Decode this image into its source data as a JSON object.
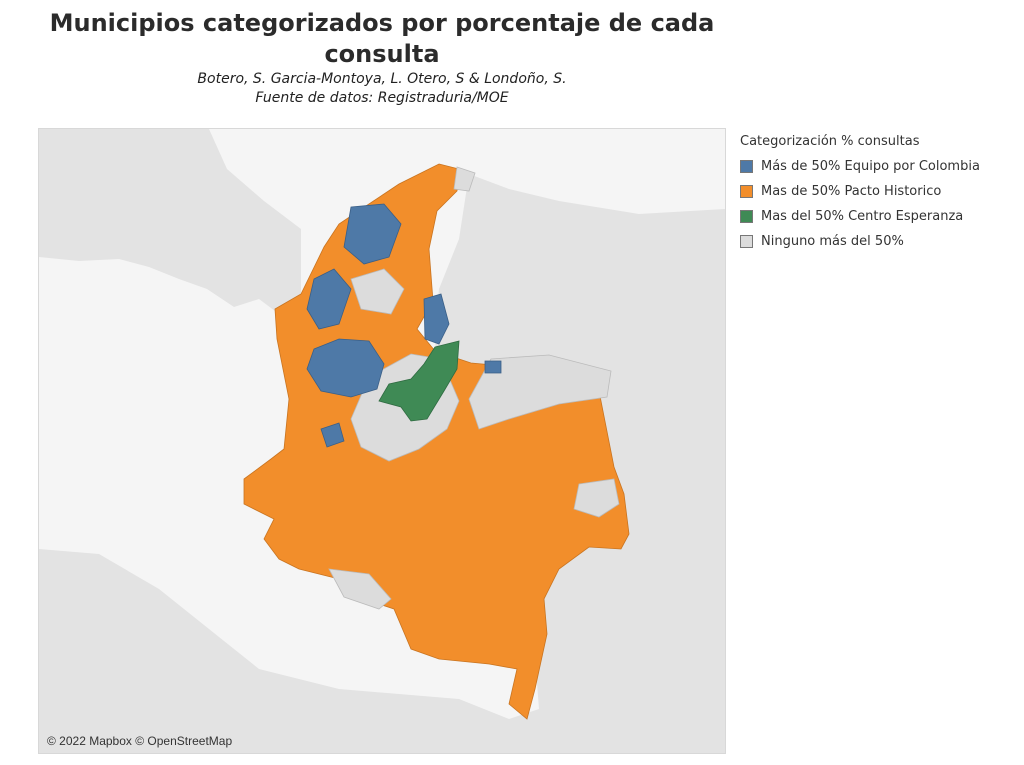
{
  "header": {
    "title_line1": "Municipios categorizados por porcentaje de cada",
    "title_line2": "consulta",
    "subtitle_line1": "Botero, S. Garcia-Montoya, L. Otero, S & Londoño, S.",
    "subtitle_line2": "Fuente de datos: Registraduria/MOE"
  },
  "map": {
    "attribution": "© 2022 Mapbox © OpenStreetMap",
    "land_color": "#e3e3e3",
    "water_color": "#f5f5f5"
  },
  "legend": {
    "title": "Categorización % consultas",
    "items": [
      {
        "label": "Más de 50% Equipo por Colombia",
        "color": "#4e79a7"
      },
      {
        "label": "Mas de 50% Pacto Historico",
        "color": "#f28e2b"
      },
      {
        "label": "Mas del 50% Centro Esperanza",
        "color": "#3f8a55"
      },
      {
        "label": "Ninguno más del 50%",
        "color": "#dcdcdc"
      }
    ]
  }
}
